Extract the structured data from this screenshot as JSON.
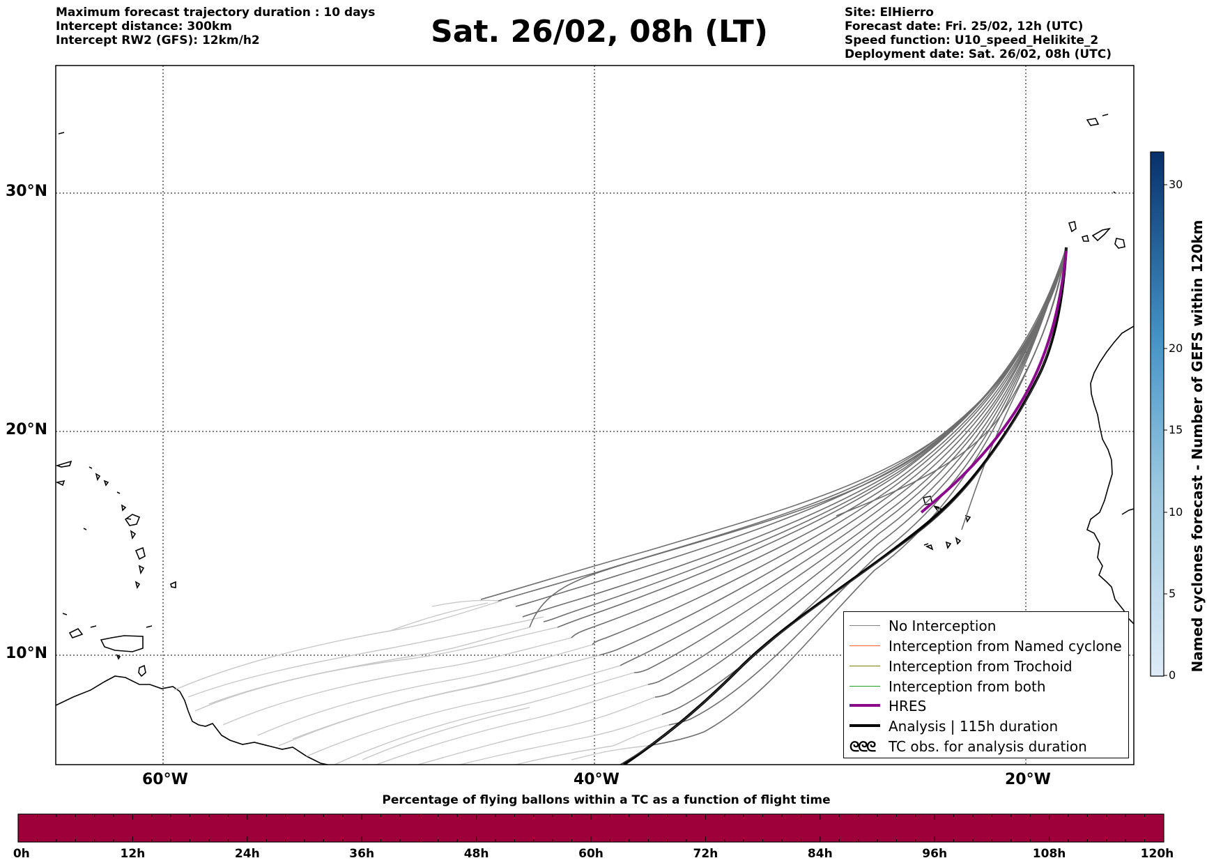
{
  "header_left": [
    "Maximum forecast trajectory duration : 10 days",
    "Intercept distance: 300km",
    "Intercept RW2 (GFS):  12km/h2"
  ],
  "title": "Sat. 26/02, 08h (LT)",
  "header_right": [
    "Site: ElHierro",
    "Forecast date: Fri. 25/02, 12h (UTC)",
    "Speed function: U10_speed_Helikite_2",
    "Deployment date: Sat. 26/02, 08h (UTC)"
  ],
  "map": {
    "lat_labels": [
      "30°N",
      "20°N",
      "10°N"
    ],
    "lon_labels": [
      "60°W",
      "40°W",
      "20°W"
    ],
    "grid": true
  },
  "legend": {
    "items": [
      {
        "label": "No Interception",
        "color": "#808080"
      },
      {
        "label": "Interception from Named cyclone",
        "color": "#ff6020"
      },
      {
        "label": "Interception from Trochoid",
        "color": "#808000"
      },
      {
        "label": "Interception from both",
        "color": "#20a020"
      },
      {
        "label": "HRES",
        "color": "#8b0a8b"
      },
      {
        "label": "Analysis | 115h duration",
        "color": "#000000"
      },
      {
        "label": "TC obs. for analysis duration",
        "color": "#000000"
      }
    ]
  },
  "colorbar_right": {
    "title": "Named cyclones forecast - Number of GEFS within 120km",
    "ticks": [
      "0",
      "5",
      "10",
      "15",
      "20",
      "30"
    ],
    "colors": [
      "#deebf7",
      "#08306b"
    ]
  },
  "bottom_bar": {
    "title": "Percentage of flying ballons within a TC as a function of flight time",
    "ticks": [
      "0h",
      "12h",
      "24h",
      "36h",
      "48h",
      "60h",
      "72h",
      "84h",
      "96h",
      "108h",
      "120h"
    ],
    "color": "#9e003a"
  }
}
